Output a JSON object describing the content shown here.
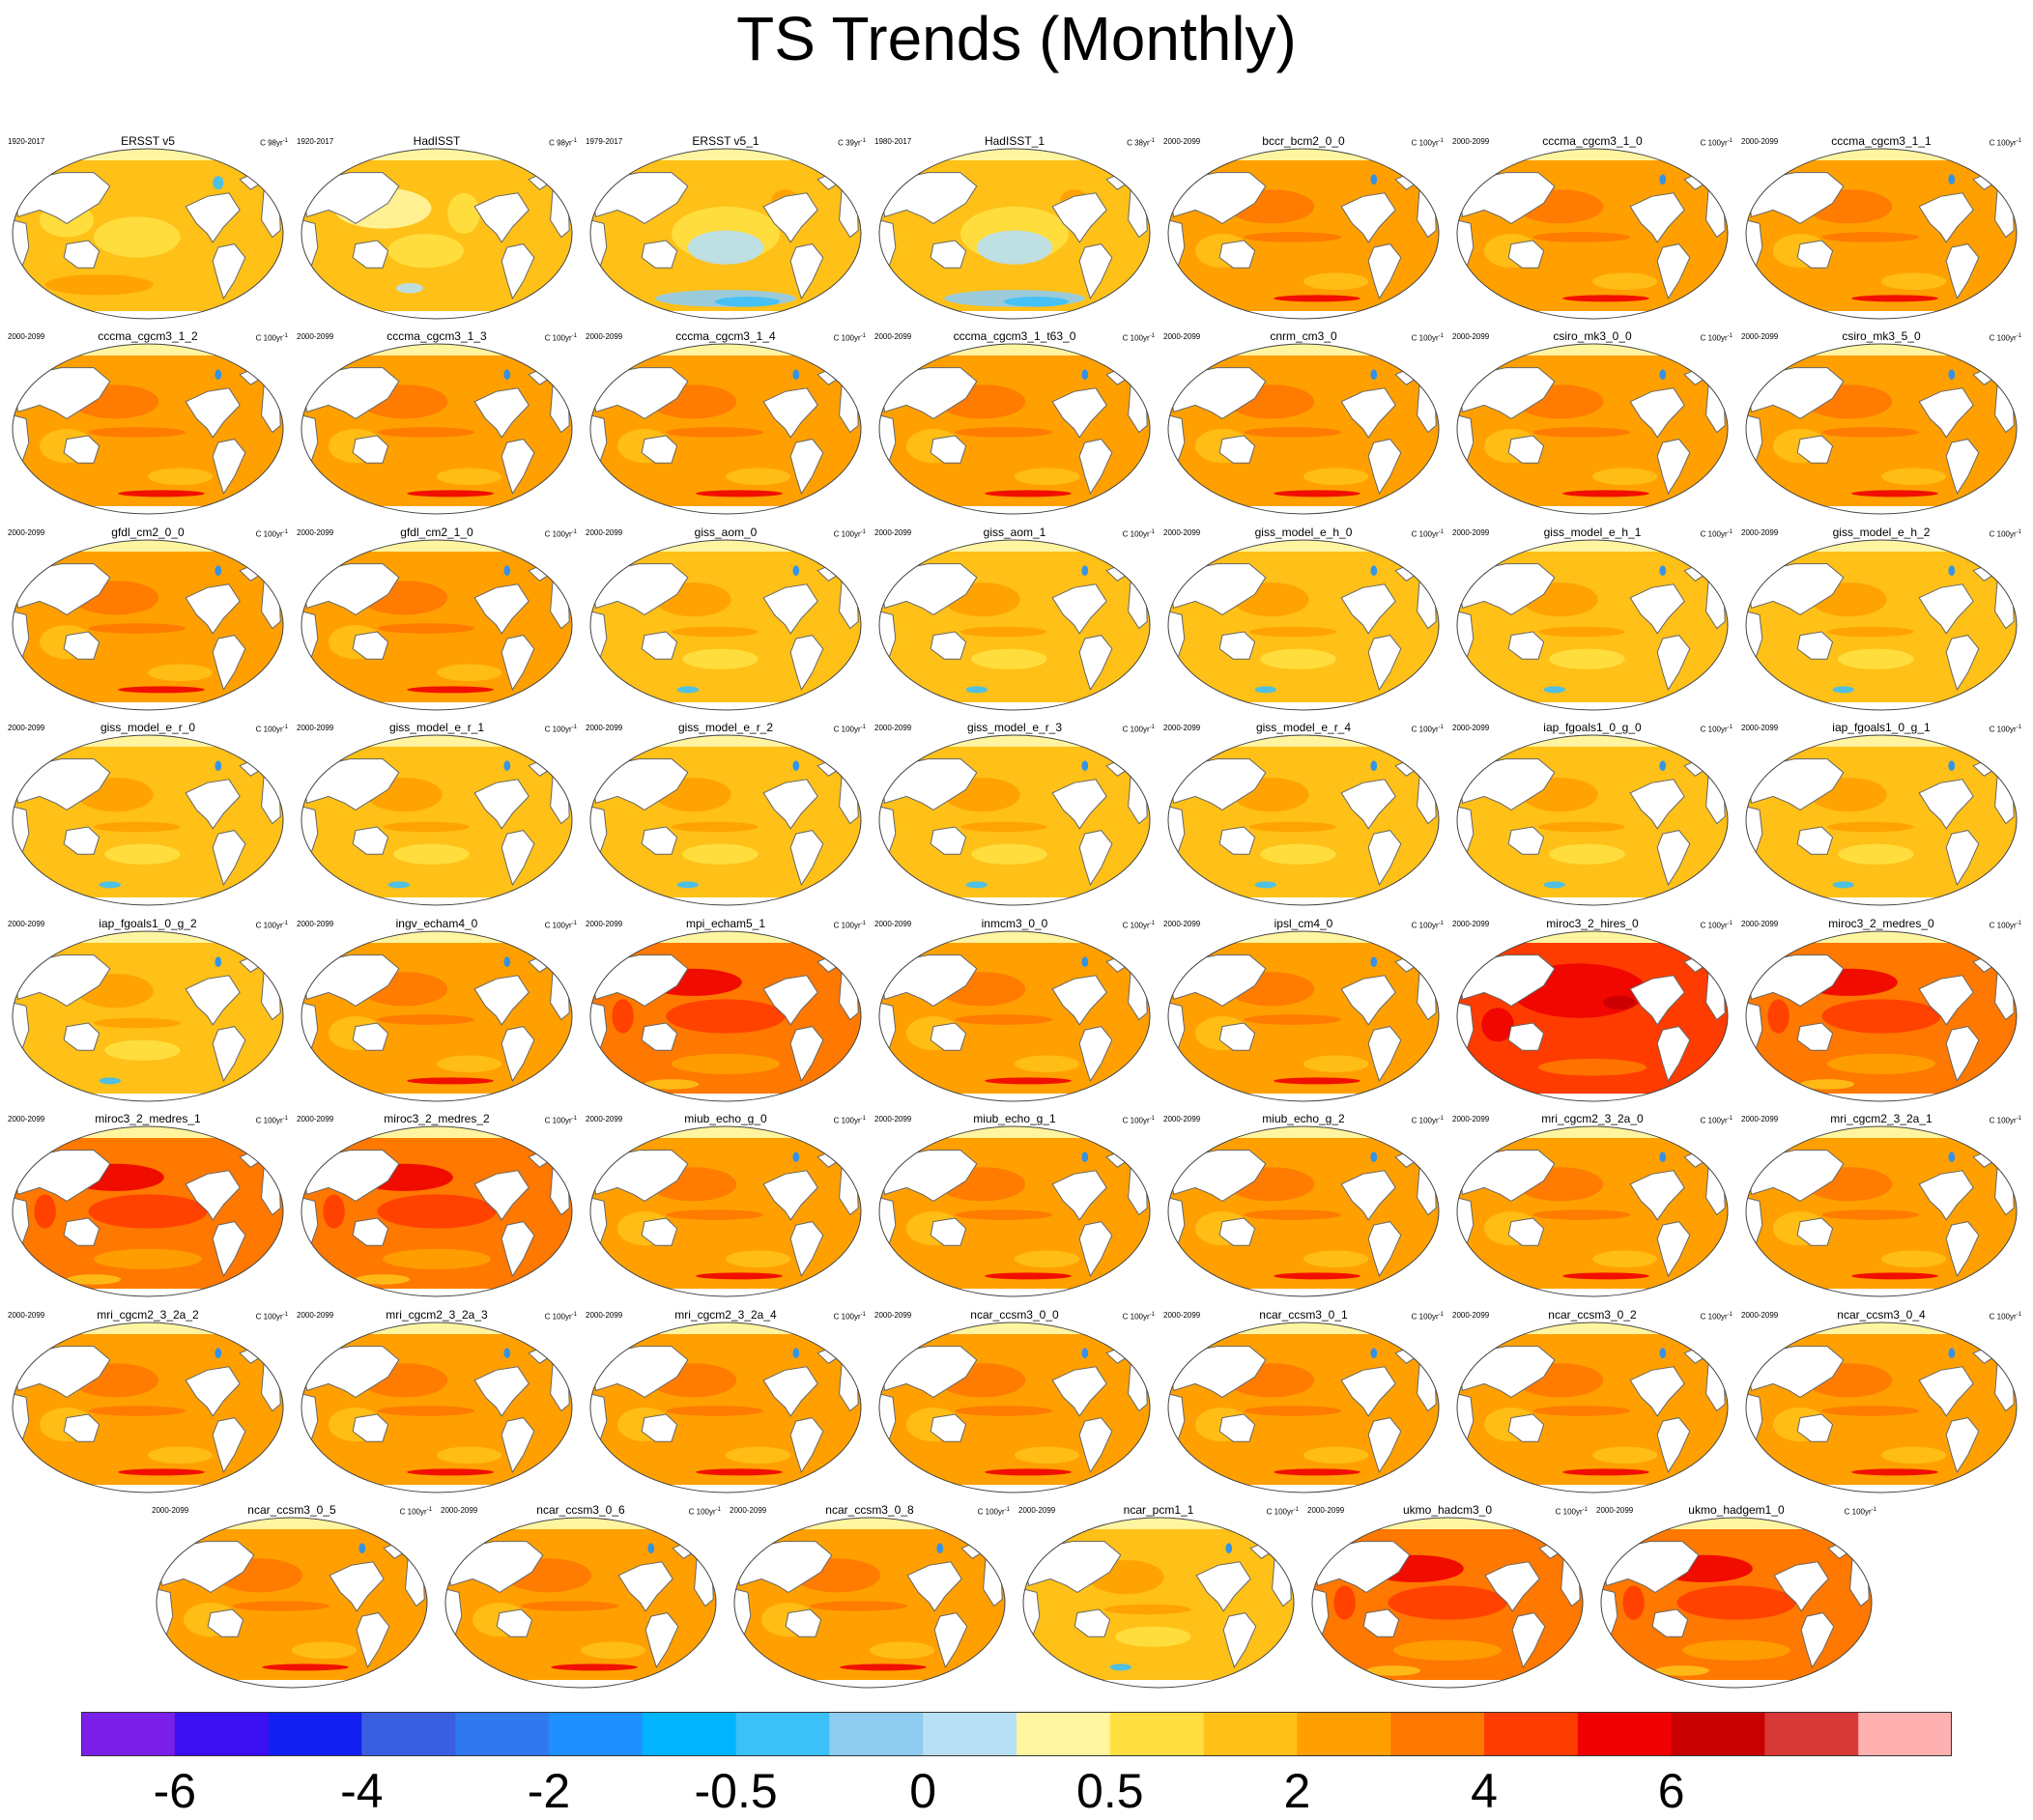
{
  "title": "TS Trends (Monthly)",
  "chart_data": {
    "type": "map_panels",
    "title": "TS Trends (Monthly)",
    "projection": "robinson-global",
    "colorbar": {
      "orientation": "horizontal",
      "placement": "bottom",
      "colors": [
        "#7a1fe8",
        "#3a10f0",
        "#1420f2",
        "#3a5ee0",
        "#2f78ee",
        "#1e90ff",
        "#00b4ff",
        "#3cc0f8",
        "#90ccf0",
        "#b8e0f4",
        "#fff5a0",
        "#ffe040",
        "#ffc018",
        "#ffa000",
        "#ff7800",
        "#ff3c00",
        "#f00000",
        "#c80000",
        "#d83838",
        "#ffb0b0"
      ],
      "tick_labels": [
        "-6",
        "-4",
        "-2",
        "-0.5",
        "0",
        "0.5",
        "2",
        "4",
        "6"
      ],
      "tick_boundaries": [
        1,
        3,
        5,
        7,
        9,
        11,
        13,
        15,
        17
      ]
    },
    "panels": [
      {
        "name": "ERSST v5",
        "period": "1920-2017",
        "units": "C 98yr",
        "style": "obs"
      },
      {
        "name": "HadISST",
        "period": "1920-2017",
        "units": "C 98yr",
        "style": "obs_mix"
      },
      {
        "name": "ERSST v5_1",
        "period": "1979-2017",
        "units": "C 39yr",
        "style": "obs_cool"
      },
      {
        "name": "HadISST_1",
        "period": "1980-2017",
        "units": "C 38yr",
        "style": "obs_cool"
      },
      {
        "name": "bccr_bcm2_0_0",
        "period": "2000-2099",
        "units": "C 100yr",
        "style": "mid"
      },
      {
        "name": "cccma_cgcm3_1_0",
        "period": "2000-2099",
        "units": "C 100yr",
        "style": "mid"
      },
      {
        "name": "cccma_cgcm3_1_1",
        "period": "2000-2099",
        "units": "C 100yr",
        "style": "mid"
      },
      {
        "name": "cccma_cgcm3_1_2",
        "period": "2000-2099",
        "units": "C 100yr",
        "style": "mid"
      },
      {
        "name": "cccma_cgcm3_1_3",
        "period": "2000-2099",
        "units": "C 100yr",
        "style": "mid"
      },
      {
        "name": "cccma_cgcm3_1_4",
        "period": "2000-2099",
        "units": "C 100yr",
        "style": "mid"
      },
      {
        "name": "cccma_cgcm3_1_t63_0",
        "period": "2000-2099",
        "units": "C 100yr",
        "style": "mid"
      },
      {
        "name": "cnrm_cm3_0",
        "period": "2000-2099",
        "units": "C 100yr",
        "style": "mid"
      },
      {
        "name": "csiro_mk3_0_0",
        "period": "2000-2099",
        "units": "C 100yr",
        "style": "mid"
      },
      {
        "name": "csiro_mk3_5_0",
        "period": "2000-2099",
        "units": "C 100yr",
        "style": "mid"
      },
      {
        "name": "gfdl_cm2_0_0",
        "period": "2000-2099",
        "units": "C 100yr",
        "style": "mid"
      },
      {
        "name": "gfdl_cm2_1_0",
        "period": "2000-2099",
        "units": "C 100yr",
        "style": "mid"
      },
      {
        "name": "giss_aom_0",
        "period": "2000-2099",
        "units": "C 100yr",
        "style": "low"
      },
      {
        "name": "giss_aom_1",
        "period": "2000-2099",
        "units": "C 100yr",
        "style": "low"
      },
      {
        "name": "giss_model_e_h_0",
        "period": "2000-2099",
        "units": "C 100yr",
        "style": "low"
      },
      {
        "name": "giss_model_e_h_1",
        "period": "2000-2099",
        "units": "C 100yr",
        "style": "low"
      },
      {
        "name": "giss_model_e_h_2",
        "period": "2000-2099",
        "units": "C 100yr",
        "style": "low"
      },
      {
        "name": "giss_model_e_r_0",
        "period": "2000-2099",
        "units": "C 100yr",
        "style": "low"
      },
      {
        "name": "giss_model_e_r_1",
        "period": "2000-2099",
        "units": "C 100yr",
        "style": "low"
      },
      {
        "name": "giss_model_e_r_2",
        "period": "2000-2099",
        "units": "C 100yr",
        "style": "low"
      },
      {
        "name": "giss_model_e_r_3",
        "period": "2000-2099",
        "units": "C 100yr",
        "style": "low"
      },
      {
        "name": "giss_model_e_r_4",
        "period": "2000-2099",
        "units": "C 100yr",
        "style": "low"
      },
      {
        "name": "iap_fgoals1_0_g_0",
        "period": "2000-2099",
        "units": "C 100yr",
        "style": "low"
      },
      {
        "name": "iap_fgoals1_0_g_1",
        "period": "2000-2099",
        "units": "C 100yr",
        "style": "low"
      },
      {
        "name": "iap_fgoals1_0_g_2",
        "period": "2000-2099",
        "units": "C 100yr",
        "style": "low"
      },
      {
        "name": "ingv_echam4_0",
        "period": "2000-2099",
        "units": "C 100yr",
        "style": "mid"
      },
      {
        "name": "mpi_echam5_1",
        "period": "2000-2099",
        "units": "C 100yr",
        "style": "high"
      },
      {
        "name": "inmcm3_0_0",
        "period": "2000-2099",
        "units": "C 100yr",
        "style": "mid"
      },
      {
        "name": "ipsl_cm4_0",
        "period": "2000-2099",
        "units": "C 100yr",
        "style": "mid"
      },
      {
        "name": "miroc3_2_hires_0",
        "period": "2000-2099",
        "units": "C 100yr",
        "style": "veryhigh"
      },
      {
        "name": "miroc3_2_medres_0",
        "period": "2000-2099",
        "units": "C 100yr",
        "style": "high"
      },
      {
        "name": "miroc3_2_medres_1",
        "period": "2000-2099",
        "units": "C 100yr",
        "style": "high"
      },
      {
        "name": "miroc3_2_medres_2",
        "period": "2000-2099",
        "units": "C 100yr",
        "style": "high"
      },
      {
        "name": "miub_echo_g_0",
        "period": "2000-2099",
        "units": "C 100yr",
        "style": "mid"
      },
      {
        "name": "miub_echo_g_1",
        "period": "2000-2099",
        "units": "C 100yr",
        "style": "mid"
      },
      {
        "name": "miub_echo_g_2",
        "period": "2000-2099",
        "units": "C 100yr",
        "style": "mid"
      },
      {
        "name": "mri_cgcm2_3_2a_0",
        "period": "2000-2099",
        "units": "C 100yr",
        "style": "mid"
      },
      {
        "name": "mri_cgcm2_3_2a_1",
        "period": "2000-2099",
        "units": "C 100yr",
        "style": "mid"
      },
      {
        "name": "mri_cgcm2_3_2a_2",
        "period": "2000-2099",
        "units": "C 100yr",
        "style": "mid"
      },
      {
        "name": "mri_cgcm2_3_2a_3",
        "period": "2000-2099",
        "units": "C 100yr",
        "style": "mid"
      },
      {
        "name": "mri_cgcm2_3_2a_4",
        "period": "2000-2099",
        "units": "C 100yr",
        "style": "mid"
      },
      {
        "name": "ncar_ccsm3_0_0",
        "period": "2000-2099",
        "units": "C 100yr",
        "style": "mid"
      },
      {
        "name": "ncar_ccsm3_0_1",
        "period": "2000-2099",
        "units": "C 100yr",
        "style": "mid"
      },
      {
        "name": "ncar_ccsm3_0_2",
        "period": "2000-2099",
        "units": "C 100yr",
        "style": "mid"
      },
      {
        "name": "ncar_ccsm3_0_4",
        "period": "2000-2099",
        "units": "C 100yr",
        "style": "mid"
      },
      {
        "name": "ncar_ccsm3_0_5",
        "period": "2000-2099",
        "units": "C 100yr",
        "style": "mid"
      },
      {
        "name": "ncar_ccsm3_0_6",
        "period": "2000-2099",
        "units": "C 100yr",
        "style": "mid"
      },
      {
        "name": "ncar_ccsm3_0_8",
        "period": "2000-2099",
        "units": "C 100yr",
        "style": "mid"
      },
      {
        "name": "ncar_pcm1_1",
        "period": "2000-2099",
        "units": "C 100yr",
        "style": "low"
      },
      {
        "name": "ukmo_hadcm3_0",
        "period": "2000-2099",
        "units": "C 100yr",
        "style": "high"
      },
      {
        "name": "ukmo_hadgem1_0",
        "period": "2000-2099",
        "units": "C 100yr",
        "style": "high"
      }
    ]
  }
}
